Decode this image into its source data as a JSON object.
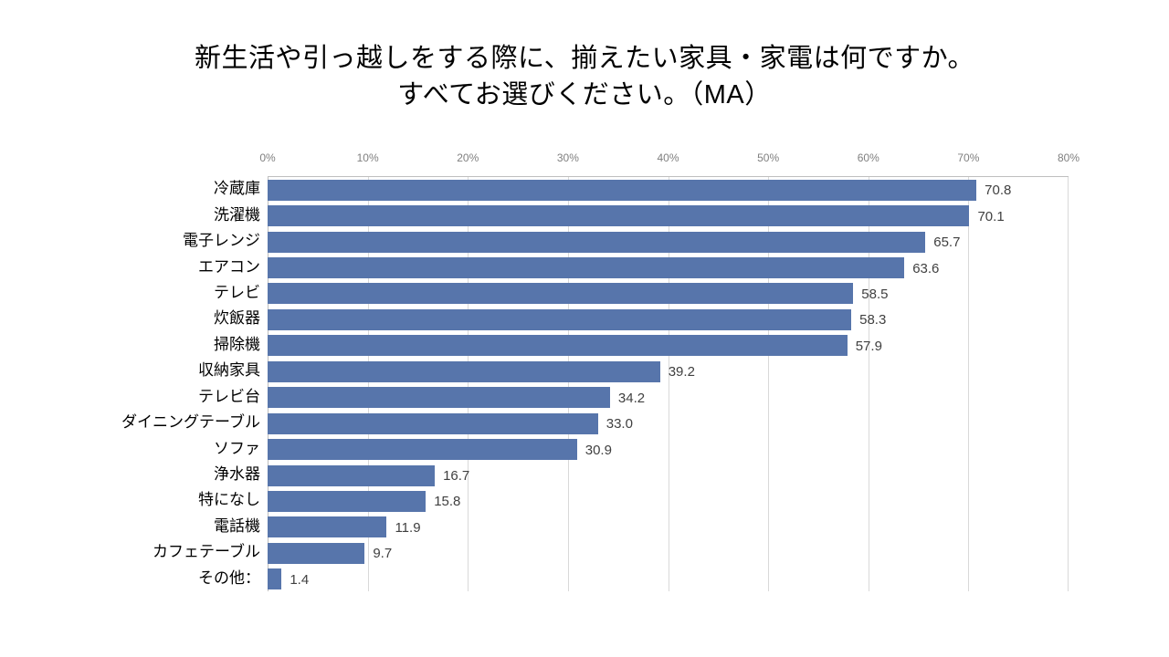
{
  "title": {
    "line1": "新生活や引っ越しをする際に、揃えたい家具・家電は何ですか。",
    "line2": "すべてお選びください。（MA）"
  },
  "chart_data": {
    "type": "bar",
    "orientation": "horizontal",
    "title": "新生活や引っ越しをする際に、揃えたい家具・家電は何ですか。すべてお選びください。（MA）",
    "categories": [
      "冷蔵庫",
      "洗濯機",
      "電子レンジ",
      "エアコン",
      "テレビ",
      "炊飯器",
      "掃除機",
      "収納家具",
      "テレビ台",
      "ダイニングテーブル",
      "ソファ",
      "浄水器",
      "特になし",
      "電話機",
      "カフェテーブル",
      "その他："
    ],
    "values": [
      70.8,
      70.1,
      65.7,
      63.6,
      58.5,
      58.3,
      57.9,
      39.2,
      34.2,
      33.0,
      30.9,
      16.7,
      15.8,
      11.9,
      9.7,
      1.4
    ],
    "value_labels": [
      "70.8",
      "70.1",
      "65.7",
      "63.6",
      "58.5",
      "58.3",
      "57.9",
      "39.2",
      "34.2",
      "33.0",
      "30.9",
      "16.7",
      "15.8",
      "11.9",
      "9.7",
      "1.4"
    ],
    "x_axis": {
      "position": "top",
      "min": 0,
      "max": 80,
      "tick_step": 10,
      "tick_labels": [
        "0%",
        "10%",
        "20%",
        "30%",
        "40%",
        "50%",
        "60%",
        "70%",
        "80%"
      ]
    },
    "grid": true,
    "legend": "none",
    "colors": {
      "bar": "#5775ab",
      "gridline": "#d9d9d9",
      "axis_line": "#bfbfbf",
      "tick_text": "#7f7f7f",
      "value_text": "#404040",
      "category_text": "#000000"
    }
  }
}
